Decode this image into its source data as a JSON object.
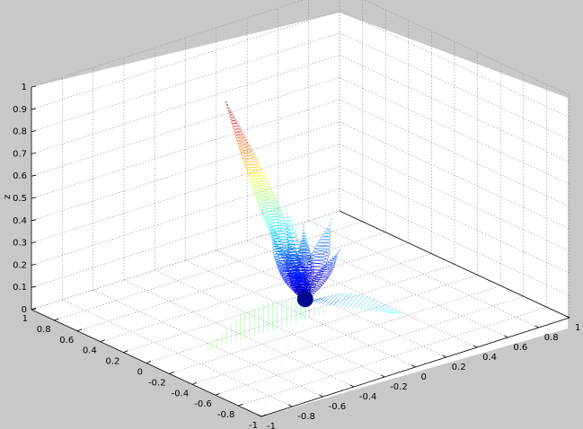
{
  "chart_data": {
    "type": "surface",
    "title": "",
    "xlabel": "",
    "ylabel": "",
    "zlabel": "z",
    "xlim": [
      -1,
      1
    ],
    "ylim": [
      -1,
      1
    ],
    "zlim": [
      0,
      1
    ],
    "z_ticks": [
      "0",
      "0.1",
      "0.2",
      "0.3",
      "0.4",
      "0.5",
      "0.6",
      "0.7",
      "0.8",
      "0.9",
      "1"
    ],
    "y_ticks": [
      "1",
      "0.8",
      "0.6",
      "0.4",
      "0.2",
      "0",
      "-0.2",
      "-0.4",
      "-0.6",
      "-0.8",
      "-1"
    ],
    "x_ticks": [
      "-1",
      "-0.8",
      "-0.6",
      "-0.4",
      "-0.2",
      "0",
      "0.2",
      "0.4",
      "0.6",
      "0.8",
      "1"
    ],
    "grid": true,
    "colormap": "jet",
    "background": "#c8c8c8",
    "axes_background": "#ffffff",
    "description_values": {
      "main_lobe_peak_z": 0.87,
      "side_lobe_peak_z": 0.27
    }
  }
}
